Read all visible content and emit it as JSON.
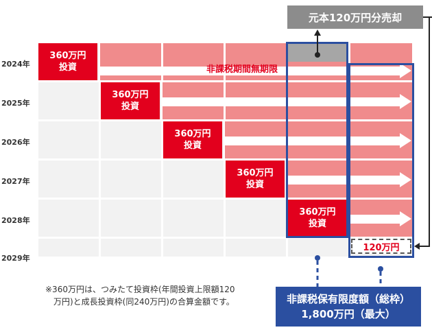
{
  "years": [
    "2024年",
    "2025年",
    "2026年",
    "2027年",
    "2028年",
    "2029年"
  ],
  "investment_label_line1": "360万円",
  "investment_label_line2": "投資",
  "tax_free_period_label": "非課税期間無期限",
  "sell_label": "元本120万円分売却",
  "remaining_label": "120万円",
  "limit_label_line1": "非課税保有限度額（総枠）",
  "limit_label_line2": "1,800万円（最大）",
  "note_line1": "※360万円は、つみたて投資枠(年間投資上限額120",
  "note_line2": "万円)と成長投資枠(同240万円)の合算金額です。",
  "colors": {
    "invest": "#e2001d",
    "holding": "#f08b8c",
    "sold": "#a6a6a6",
    "limit_border": "#2b4fa0",
    "sell_box": "#8c8c8c"
  }
}
